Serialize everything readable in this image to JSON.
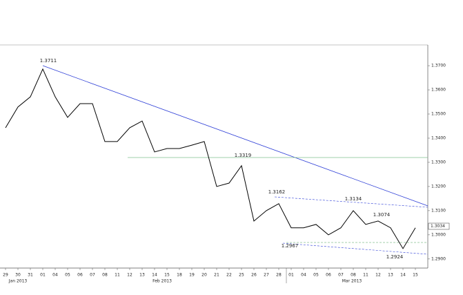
{
  "chart_data": {
    "type": "line",
    "categories": [
      "29",
      "30",
      "31",
      "01",
      "04",
      "05",
      "06",
      "07",
      "08",
      "11",
      "12",
      "13",
      "14",
      "15",
      "18",
      "19",
      "20",
      "21",
      "22",
      "25",
      "26",
      "27",
      "28",
      "01",
      "04",
      "05",
      "06",
      "07",
      "08",
      "11",
      "12",
      "13",
      "14",
      "15"
    ],
    "month_labels": [
      "Jan 2013",
      "Feb 2013",
      "Mar 2013"
    ],
    "series": [
      {
        "color": "#000000",
        "values": [
          1.3443,
          1.3529,
          1.3571,
          1.3686,
          1.3571,
          1.3486,
          1.3543,
          1.3543,
          1.3386,
          1.3386,
          1.3443,
          1.3471,
          1.3343,
          1.3357,
          1.3357,
          1.3371,
          1.3386,
          1.32,
          1.3214,
          1.3286,
          1.3057,
          1.31,
          1.3129,
          1.3029,
          1.3029,
          1.3043,
          1.3,
          1.3029,
          1.31,
          1.3043,
          1.3057,
          1.3029,
          1.2943,
          1.3029
        ]
      }
    ],
    "ylim": [
      1.2871,
      1.3786
    ],
    "yticks": [
      {
        "value": 1.37,
        "label": "1.3700"
      },
      {
        "value": 1.36,
        "label": "1.3600"
      },
      {
        "value": 1.35,
        "label": "1.3500"
      },
      {
        "value": 1.34,
        "label": "1.3400"
      },
      {
        "value": 1.33,
        "label": "1.3300"
      },
      {
        "value": 1.32,
        "label": "1.3200"
      },
      {
        "value": 1.31,
        "label": "1.3100"
      },
      {
        "value": 1.3,
        "label": "1.3000"
      },
      {
        "value": 1.29,
        "label": "1.2900"
      }
    ],
    "annotations": [
      "1.3711",
      "1.3319",
      "1.3162",
      "1.3134",
      "1.3074",
      "1.2967",
      "1.2924"
    ],
    "last_price_label": "1.3034"
  }
}
